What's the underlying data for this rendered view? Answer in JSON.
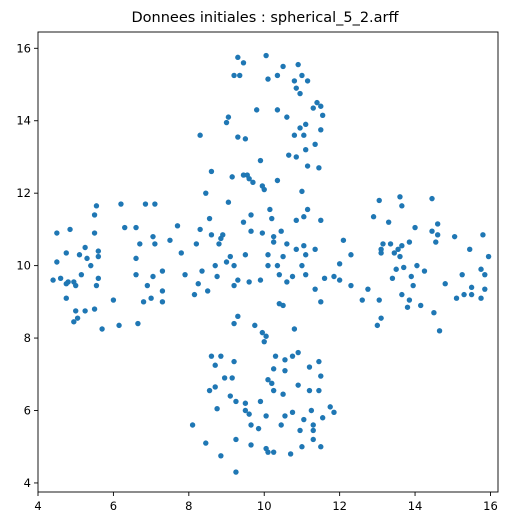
{
  "chart_data": {
    "type": "scatter",
    "title": "Donnees initiales : spherical_5_2.arff",
    "xlabel": "",
    "ylabel": "",
    "xlim": [
      4.0,
      16.2
    ],
    "ylim": [
      3.75,
      16.45
    ],
    "xticks": [
      "4",
      "6",
      "8",
      "10",
      "12",
      "14",
      "16"
    ],
    "xtick_values": [
      4,
      6,
      8,
      10,
      12,
      14,
      16
    ],
    "yticks": [
      "4",
      "6",
      "8",
      "10",
      "12",
      "14",
      "16"
    ],
    "ytick_values": [
      4,
      6,
      8,
      10,
      12,
      14,
      16
    ],
    "grid": false,
    "colors": {
      "point": "#1f77b4",
      "axis": "#000000",
      "background": "#ffffff"
    },
    "series": [
      {
        "values": [
          [
            9.3,
            15.75
          ],
          [
            10.05,
            15.8
          ],
          [
            9.45,
            15.6
          ],
          [
            10.5,
            15.5
          ],
          [
            10.9,
            15.55
          ],
          [
            11.0,
            15.25
          ],
          [
            9.2,
            15.25
          ],
          [
            9.35,
            15.25
          ],
          [
            10.1,
            15.15
          ],
          [
            10.35,
            15.25
          ],
          [
            10.8,
            15.1
          ],
          [
            11.15,
            15.1
          ],
          [
            10.85,
            14.9
          ],
          [
            10.95,
            14.75
          ],
          [
            11.4,
            14.5
          ],
          [
            11.5,
            14.4
          ],
          [
            11.3,
            14.35
          ],
          [
            9.8,
            14.3
          ],
          [
            10.35,
            14.3
          ],
          [
            11.55,
            14.15
          ],
          [
            9.05,
            14.1
          ],
          [
            10.6,
            14.1
          ],
          [
            11.1,
            13.9
          ],
          [
            9.0,
            13.95
          ],
          [
            10.95,
            13.8
          ],
          [
            11.5,
            13.75
          ],
          [
            9.3,
            13.55
          ],
          [
            9.5,
            13.5
          ],
          [
            10.8,
            13.6
          ],
          [
            11.05,
            13.6
          ],
          [
            11.35,
            13.35
          ],
          [
            11.1,
            13.2
          ],
          [
            10.65,
            13.05
          ],
          [
            9.9,
            12.9
          ],
          [
            10.85,
            13.0
          ],
          [
            11.15,
            12.75
          ],
          [
            11.45,
            12.7
          ],
          [
            9.45,
            12.5
          ],
          [
            9.55,
            12.5
          ],
          [
            9.6,
            12.4
          ],
          [
            9.7,
            12.3
          ],
          [
            10.35,
            12.35
          ],
          [
            9.95,
            12.2
          ],
          [
            10.0,
            12.1
          ],
          [
            9.15,
            12.45
          ],
          [
            11.0,
            12.05
          ],
          [
            8.45,
            12.0
          ],
          [
            8.6,
            12.6
          ],
          [
            8.3,
            13.6
          ],
          [
            4.5,
            10.9
          ],
          [
            4.85,
            11.0
          ],
          [
            5.55,
            11.65
          ],
          [
            6.2,
            11.7
          ],
          [
            6.85,
            11.7
          ],
          [
            7.1,
            11.7
          ],
          [
            5.5,
            11.4
          ],
          [
            6.6,
            11.05
          ],
          [
            6.3,
            11.05
          ],
          [
            5.5,
            10.9
          ],
          [
            5.25,
            10.5
          ],
          [
            4.5,
            10.1
          ],
          [
            5.6,
            10.4
          ],
          [
            6.7,
            10.6
          ],
          [
            7.05,
            10.8
          ],
          [
            7.1,
            10.6
          ],
          [
            7.5,
            10.7
          ],
          [
            4.75,
            10.35
          ],
          [
            5.1,
            10.3
          ],
          [
            5.6,
            10.25
          ],
          [
            5.3,
            10.2
          ],
          [
            5.4,
            10.0
          ],
          [
            6.6,
            10.2
          ],
          [
            4.8,
            9.55
          ],
          [
            4.95,
            9.55
          ],
          [
            4.75,
            9.5
          ],
          [
            4.6,
            9.65
          ],
          [
            4.4,
            9.6
          ],
          [
            5.0,
            9.45
          ],
          [
            5.15,
            9.75
          ],
          [
            5.6,
            9.65
          ],
          [
            5.55,
            9.45
          ],
          [
            6.6,
            9.75
          ],
          [
            6.9,
            9.45
          ],
          [
            7.05,
            9.7
          ],
          [
            7.3,
            9.85
          ],
          [
            4.75,
            9.1
          ],
          [
            5.0,
            8.75
          ],
          [
            5.05,
            8.55
          ],
          [
            4.95,
            8.45
          ],
          [
            5.25,
            8.75
          ],
          [
            5.5,
            8.8
          ],
          [
            6.0,
            9.05
          ],
          [
            6.8,
            9.0
          ],
          [
            7.0,
            9.1
          ],
          [
            7.3,
            9.0
          ],
          [
            5.7,
            8.25
          ],
          [
            6.15,
            8.35
          ],
          [
            6.65,
            8.4
          ],
          [
            7.7,
            11.1
          ],
          [
            8.15,
            9.2
          ],
          [
            7.3,
            9.3
          ],
          [
            13.6,
            11.9
          ],
          [
            14.45,
            11.85
          ],
          [
            13.05,
            11.8
          ],
          [
            14.6,
            11.15
          ],
          [
            12.9,
            11.35
          ],
          [
            13.3,
            11.2
          ],
          [
            13.65,
            11.65
          ],
          [
            14.0,
            11.05
          ],
          [
            14.45,
            10.95
          ],
          [
            14.6,
            10.85
          ],
          [
            15.05,
            10.8
          ],
          [
            15.8,
            10.85
          ],
          [
            13.15,
            10.6
          ],
          [
            13.35,
            10.6
          ],
          [
            13.45,
            10.35
          ],
          [
            13.55,
            10.45
          ],
          [
            13.65,
            10.55
          ],
          [
            13.85,
            10.65
          ],
          [
            14.55,
            10.65
          ],
          [
            15.45,
            10.45
          ],
          [
            13.1,
            10.45
          ],
          [
            13.1,
            10.35
          ],
          [
            13.6,
            10.25
          ],
          [
            14.05,
            10.0
          ],
          [
            13.7,
            9.95
          ],
          [
            15.95,
            10.25
          ],
          [
            15.75,
            9.9
          ],
          [
            13.5,
            9.9
          ],
          [
            13.9,
            9.7
          ],
          [
            14.25,
            9.85
          ],
          [
            13.4,
            9.65
          ],
          [
            15.25,
            9.75
          ],
          [
            15.85,
            9.75
          ],
          [
            13.95,
            9.45
          ],
          [
            14.8,
            9.5
          ],
          [
            15.5,
            9.4
          ],
          [
            12.3,
            9.45
          ],
          [
            12.75,
            9.35
          ],
          [
            13.05,
            9.05
          ],
          [
            13.65,
            9.2
          ],
          [
            13.85,
            9.05
          ],
          [
            15.3,
            9.2
          ],
          [
            15.5,
            9.2
          ],
          [
            15.75,
            9.1
          ],
          [
            15.85,
            9.35
          ],
          [
            15.1,
            9.1
          ],
          [
            12.6,
            9.05
          ],
          [
            13.1,
            8.55
          ],
          [
            13.0,
            8.35
          ],
          [
            14.15,
            8.9
          ],
          [
            14.5,
            8.7
          ],
          [
            14.65,
            8.2
          ],
          [
            13.8,
            8.85
          ],
          [
            12.1,
            10.7
          ],
          [
            12.3,
            10.3
          ],
          [
            8.2,
            10.6
          ],
          [
            8.35,
            9.85
          ],
          [
            8.25,
            9.5
          ],
          [
            8.6,
            10.85
          ],
          [
            8.8,
            10.6
          ],
          [
            8.85,
            10.75
          ],
          [
            8.9,
            10.85
          ],
          [
            9.0,
            10.1
          ],
          [
            9.1,
            10.25
          ],
          [
            9.2,
            10.0
          ],
          [
            9.5,
            10.3
          ],
          [
            9.65,
            10.95
          ],
          [
            9.95,
            10.9
          ],
          [
            10.25,
            10.8
          ],
          [
            10.25,
            10.65
          ],
          [
            10.1,
            10.3
          ],
          [
            10.1,
            10.0
          ],
          [
            10.35,
            10.0
          ],
          [
            10.5,
            10.25
          ],
          [
            10.6,
            10.6
          ],
          [
            10.85,
            10.45
          ],
          [
            11.05,
            10.55
          ],
          [
            11.1,
            10.3
          ],
          [
            11.35,
            10.45
          ],
          [
            11.0,
            10.0
          ],
          [
            11.1,
            9.75
          ],
          [
            11.6,
            9.65
          ],
          [
            10.75,
            9.7
          ],
          [
            10.6,
            9.55
          ],
          [
            10.4,
            9.75
          ],
          [
            9.9,
            9.6
          ],
          [
            9.6,
            9.55
          ],
          [
            9.3,
            9.6
          ],
          [
            9.2,
            9.45
          ],
          [
            8.75,
            9.7
          ],
          [
            8.5,
            9.3
          ],
          [
            8.7,
            10.0
          ],
          [
            11.35,
            9.35
          ],
          [
            11.5,
            9.0
          ],
          [
            12.0,
            9.6
          ],
          [
            11.85,
            9.7
          ],
          [
            10.4,
            8.95
          ],
          [
            10.5,
            8.9
          ],
          [
            8.3,
            11.0
          ],
          [
            8.55,
            11.3
          ],
          [
            9.45,
            11.2
          ],
          [
            9.65,
            11.4
          ],
          [
            10.2,
            11.3
          ],
          [
            11.05,
            11.35
          ],
          [
            11.5,
            11.25
          ],
          [
            9.05,
            11.75
          ],
          [
            10.15,
            11.55
          ],
          [
            11.15,
            11.55
          ],
          [
            10.85,
            11.25
          ],
          [
            10.45,
            10.95
          ],
          [
            12.0,
            10.05
          ],
          [
            7.8,
            10.35
          ],
          [
            7.9,
            9.75
          ],
          [
            9.3,
            8.6
          ],
          [
            9.2,
            8.4
          ],
          [
            9.75,
            8.35
          ],
          [
            9.95,
            8.15
          ],
          [
            10.05,
            8.05
          ],
          [
            10.0,
            7.9
          ],
          [
            10.8,
            8.25
          ],
          [
            8.6,
            7.5
          ],
          [
            8.85,
            7.5
          ],
          [
            9.2,
            7.35
          ],
          [
            10.3,
            7.5
          ],
          [
            10.55,
            7.4
          ],
          [
            10.75,
            7.5
          ],
          [
            10.9,
            7.6
          ],
          [
            11.45,
            7.35
          ],
          [
            8.7,
            7.25
          ],
          [
            8.95,
            6.9
          ],
          [
            9.15,
            6.9
          ],
          [
            10.25,
            7.15
          ],
          [
            10.55,
            7.1
          ],
          [
            11.2,
            7.2
          ],
          [
            11.5,
            6.95
          ],
          [
            8.55,
            6.55
          ],
          [
            8.7,
            6.65
          ],
          [
            10.1,
            6.85
          ],
          [
            10.2,
            6.75
          ],
          [
            10.25,
            6.55
          ],
          [
            10.9,
            6.7
          ],
          [
            11.2,
            6.55
          ],
          [
            11.45,
            6.55
          ],
          [
            9.1,
            6.4
          ],
          [
            9.25,
            6.25
          ],
          [
            9.5,
            6.2
          ],
          [
            9.9,
            6.25
          ],
          [
            10.5,
            6.45
          ],
          [
            11.25,
            6.0
          ],
          [
            11.75,
            6.1
          ],
          [
            8.75,
            6.05
          ],
          [
            9.5,
            6.0
          ],
          [
            9.6,
            5.9
          ],
          [
            10.05,
            5.85
          ],
          [
            10.55,
            5.85
          ],
          [
            10.75,
            5.95
          ],
          [
            11.05,
            5.75
          ],
          [
            11.55,
            5.8
          ],
          [
            8.1,
            5.6
          ],
          [
            9.65,
            5.6
          ],
          [
            10.45,
            5.6
          ],
          [
            10.95,
            5.45
          ],
          [
            11.3,
            5.45
          ],
          [
            11.85,
            5.95
          ],
          [
            8.45,
            5.1
          ],
          [
            9.25,
            5.2
          ],
          [
            9.65,
            5.05
          ],
          [
            10.1,
            4.85
          ],
          [
            10.25,
            4.85
          ],
          [
            10.7,
            4.8
          ],
          [
            8.85,
            4.75
          ],
          [
            9.25,
            4.3
          ],
          [
            10.05,
            4.95
          ],
          [
            11.0,
            5.0
          ],
          [
            11.3,
            5.2
          ],
          [
            11.5,
            5.0
          ],
          [
            11.3,
            5.6
          ],
          [
            9.85,
            5.5
          ]
        ]
      }
    ]
  }
}
